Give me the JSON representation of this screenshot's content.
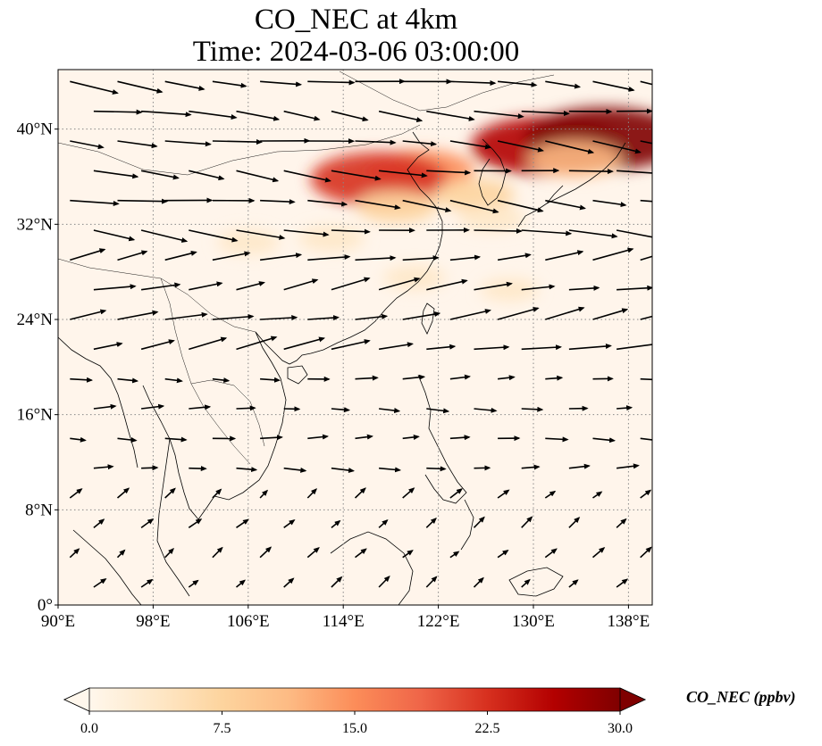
{
  "title": {
    "line1": "CO_NEC at 4km",
    "line2": "Time: 2024-03-06 03:00:00"
  },
  "map": {
    "extent": {
      "lon": [
        90,
        140
      ],
      "lat": [
        0,
        45
      ]
    },
    "lon_ticks": [
      {
        "value": 90,
        "label": "90°E"
      },
      {
        "value": 98,
        "label": "98°E"
      },
      {
        "value": 106,
        "label": "106°E"
      },
      {
        "value": 114,
        "label": "114°E"
      },
      {
        "value": 122,
        "label": "122°E"
      },
      {
        "value": 130,
        "label": "130°E"
      },
      {
        "value": 138,
        "label": "138°E"
      }
    ],
    "lat_ticks": [
      {
        "value": 0,
        "label": "0°"
      },
      {
        "value": 8,
        "label": "8°N"
      },
      {
        "value": 16,
        "label": "16°N"
      },
      {
        "value": 24,
        "label": "24°N"
      },
      {
        "value": 32,
        "label": "32°N"
      },
      {
        "value": 40,
        "label": "40°N"
      }
    ],
    "gridlines": true,
    "background_color": "#fff5eb",
    "high_concentration_plumes": [
      {
        "lon": 120.5,
        "lat": 36.5,
        "value": 16
      },
      {
        "lon": 117.0,
        "lat": 35.8,
        "value": 24
      },
      {
        "lon": 118.5,
        "lat": 33.5,
        "value": 9
      },
      {
        "lon": 113.0,
        "lat": 30.8,
        "value": 5
      },
      {
        "lon": 106.0,
        "lat": 30.5,
        "value": 4
      },
      {
        "lon": 125.0,
        "lat": 34.5,
        "value": 9
      },
      {
        "lon": 126.5,
        "lat": 32.5,
        "value": 5
      },
      {
        "lon": 131.0,
        "lat": 38.6,
        "value": 27
      },
      {
        "lon": 136.0,
        "lat": 39.2,
        "value": 30
      },
      {
        "lon": 133.5,
        "lat": 37.5,
        "value": 12
      },
      {
        "lon": 120.0,
        "lat": 27.5,
        "value": 4
      },
      {
        "lon": 128.0,
        "lat": 26.5,
        "value": 3
      }
    ]
  },
  "colorbar": {
    "label": "CO_NEC (ppbv)",
    "min": 0,
    "max": 30,
    "extend": "both",
    "colormap": "OrRd",
    "colors": [
      "#fff7ec",
      "#fee8c8",
      "#fdd49e",
      "#fdbb84",
      "#fc8d59",
      "#ef6548",
      "#d7301f",
      "#b30000",
      "#7f0000"
    ],
    "ticks": [
      {
        "value": 0,
        "label": "0.0"
      },
      {
        "value": 7.5,
        "label": "7.5"
      },
      {
        "value": 15,
        "label": "15.0"
      },
      {
        "value": 22.5,
        "label": "22.5"
      },
      {
        "value": 30,
        "label": "30.0"
      }
    ]
  },
  "wind_field": {
    "lon_step": 4,
    "lat_step": 2.5,
    "description_zones": [
      {
        "lat_min": 30,
        "lat_max": 45,
        "u": 1.0,
        "v": -0.12,
        "speed": 1.0
      },
      {
        "lat_min": 20,
        "lat_max": 30,
        "u": 1.0,
        "v": 0.18,
        "speed": 0.85
      },
      {
        "lat_min": 10,
        "lat_max": 20,
        "u": 1.0,
        "v": 0.0,
        "speed": 0.45
      },
      {
        "lat_min": 0,
        "lat_max": 10,
        "u": 0.7,
        "v": 0.6,
        "speed": 0.3
      }
    ]
  }
}
